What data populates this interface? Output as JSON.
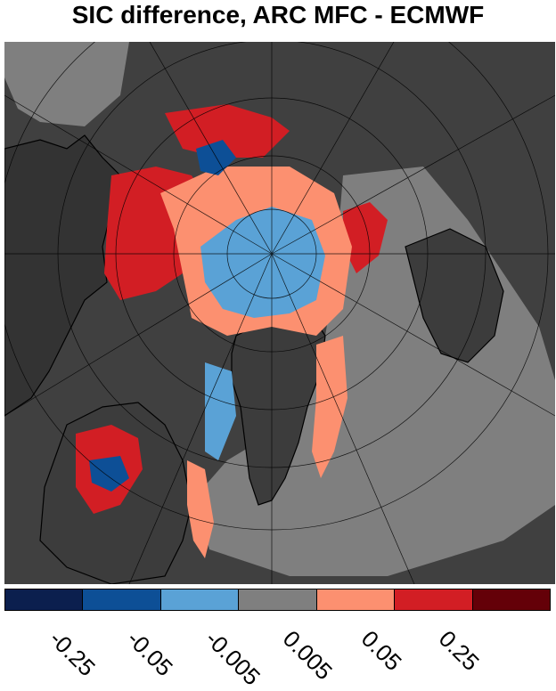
{
  "title": "SIC difference, ARC MFC - ECMWF",
  "colorbar": {
    "colors": [
      "#0b1f4e",
      "#0d4f96",
      "#5aa2d6",
      "#7f7f7f",
      "#fc9070",
      "#d21e24",
      "#640008"
    ],
    "tick_labels": [
      "-0.25",
      "-0.05",
      "-0.005",
      "0.005",
      "0.05",
      "0.25"
    ]
  },
  "map": {
    "projection": "polar stereographic (north)",
    "land_color": "#3c3c3c",
    "ocean_color": "#7f7f7f",
    "background_color": "#404040"
  }
}
